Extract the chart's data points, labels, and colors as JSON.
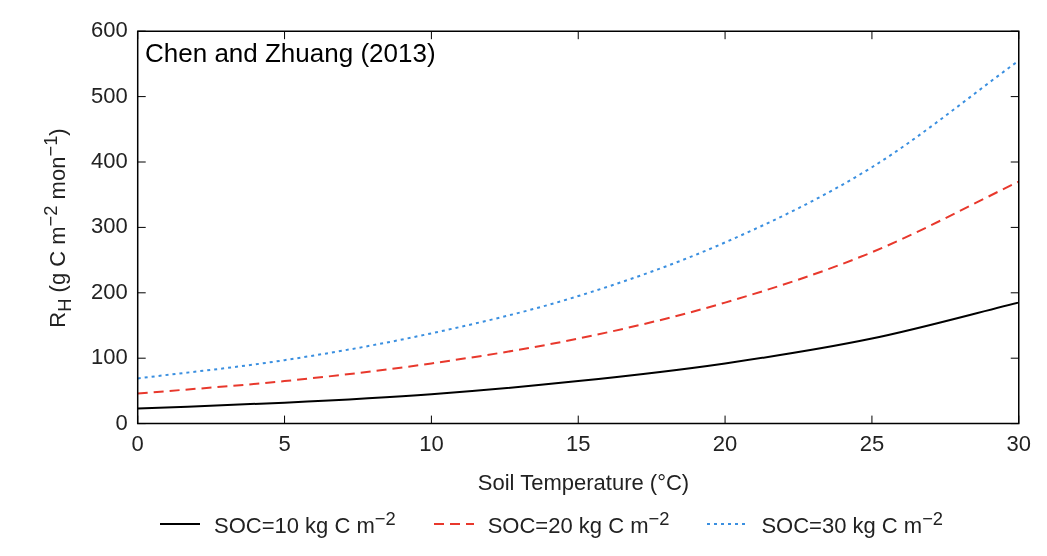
{
  "chart_data": {
    "type": "line",
    "xlabel": "Soil Temperature (°C)",
    "ylabel": "R$_{H}$ (g C m$^{−2}$ mon$^{−1}$)",
    "annotations": [
      "Chen and Zhuang (2013)"
    ],
    "x": [
      0,
      5,
      10,
      15,
      20,
      25,
      30
    ],
    "series": [
      {
        "name": "SOC=10 kg C m$^{−2}$",
        "color": "#000000",
        "line_style": "solid",
        "values": [
          23,
          32,
          45,
          65,
          92,
          130,
          185
        ]
      },
      {
        "name": "SOC=20 kg C m$^{−2}$",
        "color": "#e8382c",
        "line_style": "dashed",
        "values": [
          46,
          65,
          92,
          130,
          185,
          262,
          370
        ]
      },
      {
        "name": "SOC=30 kg C m$^{−2}$",
        "color": "#3a8fe0",
        "line_style": "dotted",
        "values": [
          69,
          97,
          138,
          195,
          277,
          392,
          555
        ]
      }
    ],
    "xlim": [
      0,
      30
    ],
    "xticks": [
      0,
      5,
      10,
      15,
      20,
      25,
      30
    ],
    "ylim": [
      0,
      600
    ],
    "yticks": [
      0,
      100,
      200,
      300,
      400,
      500,
      600
    ],
    "grid": false,
    "legend": "bottom",
    "marker": "none"
  }
}
